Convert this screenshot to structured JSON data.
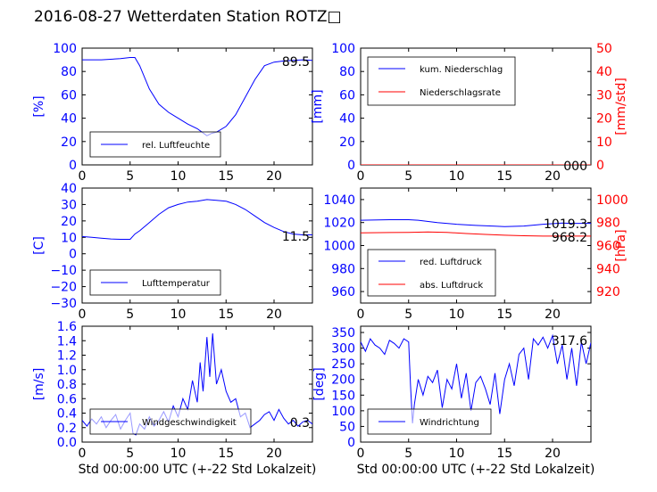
{
  "title": "2016-08-27 Wetterdaten Station ROTZ□",
  "colors": {
    "primary": "#0000ff",
    "secondary": "#ff0000",
    "axis": "#000000"
  },
  "chart_data": [
    {
      "id": "humidity",
      "type": "line",
      "ylabel": "[%]",
      "ylim": [
        0,
        100
      ],
      "yticks": [
        "0",
        "20",
        "40",
        "60",
        "80",
        "100"
      ],
      "xlim": [
        0,
        24
      ],
      "xticks": [
        "0",
        "5",
        "10",
        "15",
        "20"
      ],
      "xlabel": "",
      "legend": [
        "rel. Luftfeuchte"
      ],
      "legend_position": "lower-left",
      "annotation": "89.5",
      "series": [
        {
          "name": "rel. Luftfeuchte",
          "color": "#0000ff",
          "x": [
            0,
            2,
            4,
            5,
            5.5,
            6,
            7,
            8,
            9,
            10,
            11,
            12,
            12.5,
            13,
            13.5,
            14,
            15,
            16,
            17,
            18,
            19,
            20,
            21,
            22,
            23,
            24
          ],
          "y": [
            90,
            90,
            91,
            92,
            92,
            85,
            65,
            52,
            45,
            40,
            35,
            31,
            28,
            25,
            27,
            28,
            33,
            43,
            58,
            73,
            85,
            88,
            89,
            89.5,
            90,
            89.5
          ]
        }
      ]
    },
    {
      "id": "precip",
      "type": "line",
      "ylabel": "[mm]",
      "ylim": [
        0,
        100
      ],
      "yticks": [
        "0",
        "20",
        "40",
        "60",
        "80",
        "100"
      ],
      "y2label": "[mm/std]",
      "y2lim": [
        0,
        50
      ],
      "y2ticks": [
        "0",
        "10",
        "20",
        "30",
        "40",
        "50"
      ],
      "xlim": [
        0,
        24
      ],
      "xticks": [
        "0",
        "5",
        "10",
        "15",
        "20"
      ],
      "xlabel": "",
      "legend": [
        "kum. Niederschlag",
        "Niederschlagsrate"
      ],
      "legend_position": "upper-left",
      "annotation": "000",
      "series": [
        {
          "name": "kum. Niederschlag",
          "color": "#0000ff",
          "axis": "left",
          "x": [
            0,
            24
          ],
          "y": [
            0,
            0
          ]
        },
        {
          "name": "Niederschlagsrate",
          "color": "#ff0000",
          "axis": "right",
          "x": [
            0,
            24
          ],
          "y": [
            0,
            0
          ]
        }
      ]
    },
    {
      "id": "temperature",
      "type": "line",
      "ylabel": "[C]",
      "ylim": [
        -30,
        40
      ],
      "yticks": [
        "−30",
        "−20",
        "−10",
        "0",
        "10",
        "20",
        "30",
        "40"
      ],
      "xlim": [
        0,
        24
      ],
      "xticks": [
        "0",
        "5",
        "10",
        "15",
        "20"
      ],
      "xlabel": "",
      "legend": [
        "Lufttemperatur"
      ],
      "legend_position": "lower-left",
      "annotation": "11.5",
      "series": [
        {
          "name": "Lufttemperatur",
          "color": "#0000ff",
          "x": [
            0,
            1,
            2,
            3,
            4,
            5,
            5.5,
            6,
            7,
            8,
            9,
            10,
            11,
            12,
            13,
            14,
            15,
            16,
            17,
            18,
            19,
            20,
            21,
            22,
            23,
            24
          ],
          "y": [
            10.5,
            10,
            9.5,
            9,
            8.8,
            8.8,
            12,
            14,
            19,
            24,
            28,
            30,
            31.5,
            32,
            33,
            32.5,
            32,
            30,
            27,
            23,
            19,
            16,
            13.5,
            12,
            11.5,
            11.5
          ]
        }
      ]
    },
    {
      "id": "pressure",
      "type": "line",
      "ylabel": "",
      "ylim": [
        950,
        1050
      ],
      "yticks": [
        "960",
        "980",
        "1000",
        "1020",
        "1040"
      ],
      "y2label": "[hPa]",
      "y2lim": [
        910,
        1010
      ],
      "y2ticks": [
        "920",
        "940",
        "960",
        "980",
        "1000"
      ],
      "xlim": [
        0,
        24
      ],
      "xticks": [
        "0",
        "5",
        "10",
        "15",
        "20"
      ],
      "xlabel": "",
      "legend": [
        "red. Luftdruck",
        "abs. Luftdruck"
      ],
      "legend_position": "lower-left",
      "annotation": "1019.3",
      "annotation2": "968.2",
      "series": [
        {
          "name": "red. Luftdruck",
          "color": "#0000ff",
          "axis": "left",
          "x": [
            0,
            3,
            5,
            6,
            8,
            10,
            12,
            14,
            15,
            17,
            19,
            21,
            22,
            24
          ],
          "y": [
            1022,
            1022.5,
            1022.5,
            1022,
            1020,
            1018.5,
            1017.5,
            1016.8,
            1016.5,
            1017,
            1018.5,
            1019.5,
            1019.3,
            1019.3
          ]
        },
        {
          "name": "abs. Luftdruck",
          "color": "#ff0000",
          "axis": "right",
          "x": [
            0,
            3,
            5,
            7,
            9,
            11,
            13,
            15,
            17,
            19,
            21,
            24
          ],
          "y": [
            971,
            971.3,
            971.5,
            971.8,
            971.5,
            970.5,
            969.7,
            969,
            968.5,
            968.2,
            968.2,
            968.2
          ]
        }
      ]
    },
    {
      "id": "windspeed",
      "type": "line",
      "ylabel": "[m/s]",
      "ylim": [
        0,
        1.6
      ],
      "yticks": [
        "0.0",
        "0.2",
        "0.4",
        "0.6",
        "0.8",
        "1.0",
        "1.2",
        "1.4",
        "1.6"
      ],
      "xlim": [
        0,
        24
      ],
      "xticks": [
        "0",
        "5",
        "10",
        "15",
        "20"
      ],
      "xlabel": "Std 00:00:00 UTC (+-22 Std Lokalzeit)",
      "legend": [
        "Windgeschwindigkeit"
      ],
      "legend_position": "lower-left",
      "annotation": "0.3",
      "series": [
        {
          "name": "Windgeschwindigkeit",
          "color": "#0000ff",
          "x": [
            0,
            0.5,
            1,
            1.5,
            2,
            2.5,
            3,
            3.5,
            4,
            4.5,
            5,
            5.3,
            5.6,
            6,
            6.5,
            7,
            7.5,
            8,
            8.5,
            9,
            9.5,
            10,
            10.5,
            11,
            11.5,
            12,
            12.3,
            12.6,
            13,
            13.3,
            13.6,
            14,
            14.5,
            15,
            15.5,
            16,
            16.5,
            17,
            17.5,
            18,
            18.5,
            19,
            19.5,
            20,
            20.5,
            21,
            21.5,
            22,
            22.5,
            23,
            23.5,
            24
          ],
          "y": [
            0.3,
            0.22,
            0.32,
            0.25,
            0.35,
            0.2,
            0.3,
            0.38,
            0.18,
            0.3,
            0.4,
            0.12,
            0.1,
            0.25,
            0.18,
            0.35,
            0.22,
            0.3,
            0.42,
            0.28,
            0.5,
            0.35,
            0.6,
            0.45,
            0.85,
            0.55,
            1.1,
            0.7,
            1.45,
            0.9,
            1.5,
            0.8,
            1.0,
            0.7,
            0.55,
            0.6,
            0.35,
            0.4,
            0.2,
            0.25,
            0.3,
            0.38,
            0.42,
            0.3,
            0.45,
            0.33,
            0.25,
            0.3,
            0.22,
            0.28,
            0.3,
            0.25
          ]
        }
      ]
    },
    {
      "id": "winddir",
      "type": "line",
      "ylabel": "[deg]",
      "ylim": [
        0,
        370
      ],
      "yticks": [
        "0",
        "50",
        "100",
        "150",
        "200",
        "250",
        "300",
        "350"
      ],
      "xlim": [
        0,
        24
      ],
      "xticks": [
        "0",
        "5",
        "10",
        "15",
        "20"
      ],
      "xlabel": "Std 00:00:00 UTC (+-22 Std Lokalzeit)",
      "legend": [
        "Windrichtung"
      ],
      "legend_position": "lower-left",
      "annotation": "317.6",
      "series": [
        {
          "name": "Windrichtung",
          "color": "#0000ff",
          "x": [
            0,
            0.5,
            1,
            1.5,
            2,
            2.5,
            3,
            3.5,
            4,
            4.5,
            5,
            5.2,
            5.4,
            5.6,
            6,
            6.5,
            7,
            7.5,
            8,
            8.5,
            9,
            9.5,
            10,
            10.5,
            11,
            11.5,
            12,
            12.5,
            13,
            13.5,
            14,
            14.5,
            15,
            15.5,
            16,
            16.5,
            17,
            17.5,
            18,
            18.5,
            19,
            19.5,
            20,
            20.5,
            21,
            21.5,
            22,
            22.5,
            23,
            23.5,
            24
          ],
          "y": [
            320,
            290,
            330,
            310,
            300,
            280,
            325,
            315,
            300,
            330,
            320,
            180,
            60,
            120,
            200,
            150,
            210,
            190,
            230,
            110,
            200,
            170,
            250,
            140,
            220,
            100,
            190,
            210,
            170,
            120,
            220,
            90,
            200,
            250,
            180,
            280,
            300,
            200,
            330,
            310,
            335,
            300,
            340,
            250,
            310,
            200,
            300,
            180,
            320,
            250,
            317.6
          ]
        }
      ]
    }
  ]
}
